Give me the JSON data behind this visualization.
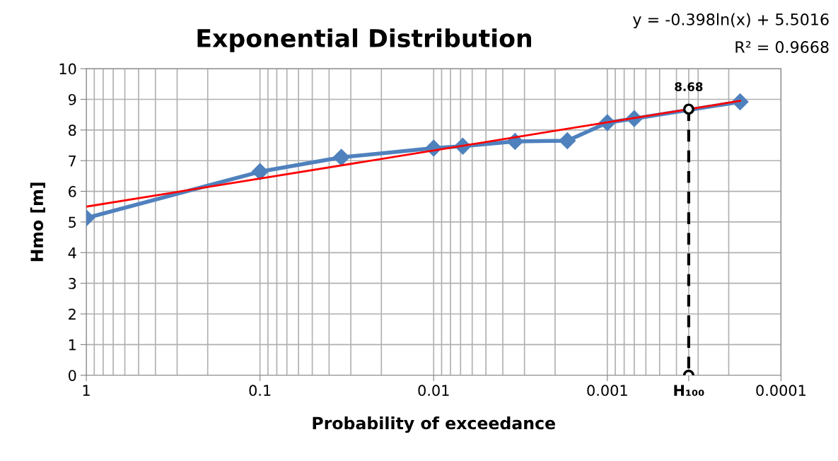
{
  "chart_data": {
    "type": "line",
    "title": "Exponential Distribution",
    "xlabel": "Probability of exceedance",
    "ylabel": "Hmo [m]",
    "annotations": [
      "y = -0.398ln(x) + 5.5016",
      "R² = 0.9668"
    ],
    "log": "x",
    "xlim": [
      1,
      0.0001
    ],
    "xticks": [
      1,
      0.1,
      0.01,
      0.001,
      {
        "value": 0.00034,
        "label": "H₁₀₀"
      },
      0.0001
    ],
    "ylim": [
      0,
      10
    ],
    "yticks": [
      0,
      1,
      2,
      3,
      4,
      5,
      6,
      7,
      8,
      9,
      10
    ],
    "grid": true,
    "legend": false,
    "series": [
      {
        "color": "#4f81bd",
        "marker": "diamond",
        "line_style": "solid",
        "x": [
          1,
          0.1,
          0.034,
          0.01,
          0.0068,
          0.0034,
          0.0017,
          0.001,
          0.0007,
          0.000172
        ],
        "values": [
          5.13,
          6.64,
          7.11,
          7.41,
          7.47,
          7.63,
          7.65,
          8.24,
          8.37,
          8.92
        ]
      },
      {
        "color": "#ff0000",
        "marker": "none",
        "line_style": "solid",
        "x": [
          1,
          0.000172
        ],
        "values": [
          5.5,
          8.95
        ]
      },
      {
        "color": "#000000",
        "marker": "circle",
        "line_style": "dashed",
        "x": [
          0.00034,
          0.00034
        ],
        "values": [
          8.68,
          0
        ],
        "value_labels": [
          "8.68",
          null
        ]
      }
    ]
  }
}
